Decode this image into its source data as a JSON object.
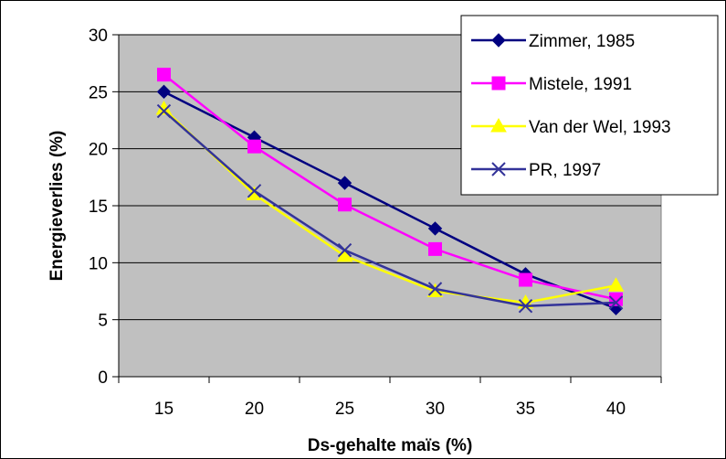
{
  "chart_data": {
    "type": "line",
    "x": [
      15,
      20,
      25,
      30,
      35,
      40
    ],
    "series": [
      {
        "name": "Zimmer, 1985",
        "values": [
          25,
          21,
          17,
          13,
          9,
          6
        ],
        "color": "#000080",
        "marker": "diamond"
      },
      {
        "name": "Mistele, 1991",
        "values": [
          26.5,
          20.2,
          15.1,
          11.2,
          8.5,
          6.8
        ],
        "color": "#FF00FF",
        "marker": "square"
      },
      {
        "name": "Van der Wel, 1993",
        "values": [
          23.5,
          16,
          10.6,
          7.5,
          6.5,
          8
        ],
        "color": "#FFFF00",
        "marker": "triangle"
      },
      {
        "name": "PR, 1997",
        "values": [
          23.3,
          16.3,
          11.1,
          7.7,
          6.2,
          6.5
        ],
        "color": "#333399",
        "marker": "x"
      }
    ],
    "xlabel": "Ds-gehalte maïs (%)",
    "ylabel": "Energieverlies (%)",
    "ylim": [
      0,
      30
    ],
    "yticks": [
      0,
      5,
      10,
      15,
      20,
      25,
      30
    ],
    "xticks": [
      "15",
      "20",
      "25",
      "30",
      "35",
      "40"
    ],
    "grid": true,
    "plot_background": "#C0C0C0",
    "legend_position": "top-right"
  }
}
